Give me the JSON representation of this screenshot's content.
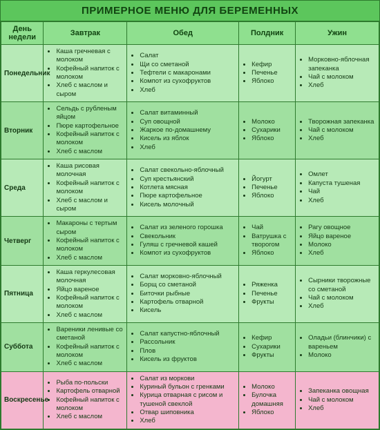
{
  "title": "ПРИМЕРНОЕ МЕНЮ ДЛЯ БЕРЕМЕННЫХ",
  "colors": {
    "title_bg": "#5cc65c",
    "title_text": "#114411",
    "header_bg": "#8fe08f",
    "header_text": "#114411",
    "row_even": "#b7eab7",
    "row_odd": "#a0e0a0",
    "row_pink": "#f4b6ce",
    "border": "#2d7a2d",
    "cell_text": "#153a15"
  },
  "columns": [
    "День недели",
    "Завтрак",
    "Обед",
    "Полдник",
    "Ужин"
  ],
  "rows": [
    {
      "day": "Понедельник",
      "breakfast": [
        "Каша гречневая с молоком",
        "Кофейный напиток с молоком",
        "Хлеб с маслом и сыром"
      ],
      "lunch": [
        "Салат",
        "Щи со сметаной",
        "Тефтели с макаронами",
        "Компот из сухофруктов",
        "Хлеб"
      ],
      "snack": [
        "Кефир",
        "Печенье",
        "Яблоко"
      ],
      "dinner": [
        "Морковно-яблочная запеканка",
        "Чай с молоком",
        "Хлеб"
      ],
      "shade": "even"
    },
    {
      "day": "Вторник",
      "breakfast": [
        "Сельдь с рубленым яйцом",
        "Пюре картофельное",
        "Кофейный напиток с молоком",
        "Хлеб с маслом"
      ],
      "lunch": [
        "Салат витаминный",
        "Суп овощной",
        "Жаркое по-домашнему",
        "Кисель из яблок",
        "Хлеб"
      ],
      "snack": [
        "Молоко",
        "Сухарики",
        "Яблоко"
      ],
      "dinner": [
        "Творожная запеканка",
        "Чай с молоком",
        "Хлеб"
      ],
      "shade": "odd"
    },
    {
      "day": "Среда",
      "breakfast": [
        "Каша рисовая молочная",
        "Кофейный напиток с молоком",
        "Хлеб с маслом и сыром"
      ],
      "lunch": [
        "Салат свекольно-яблочный",
        "Суп крестьянский",
        "Котлета мясная",
        "Пюре картофельное",
        "Кисель молочный"
      ],
      "snack": [
        "Йогурт",
        "Печенье",
        "Яблоко"
      ],
      "dinner": [
        "Омлет",
        "Капуста тушеная",
        "Чай",
        "Хлеб"
      ],
      "shade": "even"
    },
    {
      "day": "Четверг",
      "breakfast": [
        "Макароны с тертым сыром",
        "Кофейный напиток с молоком",
        "Хлеб с маслом"
      ],
      "lunch": [
        "Салат из зеленого горошка",
        "Свекольник",
        "Гуляш с гречневой кашей",
        "Компот из сухофруктов"
      ],
      "snack": [
        "Чай",
        "Ватрушка с творогом",
        "Яблоко"
      ],
      "dinner": [
        "Рагу овощное",
        "Яйцо вареное",
        "Молоко",
        "Хлеб"
      ],
      "shade": "odd"
    },
    {
      "day": "Пятница",
      "breakfast": [
        "Каша геркулесовая молочная",
        "Яйцо вареное",
        "Кофейный напиток с молоком",
        "Хлеб с маслом"
      ],
      "lunch": [
        "Салат морковно-яблочный",
        "Борщ со сметаной",
        "Биточки рыбные",
        "Картофель отварной",
        "Кисель"
      ],
      "snack": [
        "Ряженка",
        "Печенье",
        "Фрукты"
      ],
      "dinner": [
        "Сырники творожные со сметаной",
        "Чай с молоком",
        "Хлеб"
      ],
      "shade": "even"
    },
    {
      "day": "Суббота",
      "breakfast": [
        "Вареники ленивые со сметаной",
        "Кофейный напиток с молоком",
        "Хлеб с маслом"
      ],
      "lunch": [
        "Салат капустно-яблочный",
        "Рассольник",
        "Плов",
        "Кисель из фруктов"
      ],
      "snack": [
        "Кефир",
        "Сухарики",
        "Фрукты"
      ],
      "dinner": [
        "Оладьи (блинчики) с вареньем",
        "Молоко"
      ],
      "shade": "odd"
    },
    {
      "day": "Воскресенье",
      "breakfast": [
        "Рыба по-польски",
        "Картофель отварной",
        "Кофейный напиток с молоком",
        "Хлеб с маслом"
      ],
      "lunch": [
        "Салат из моркови",
        "Куриный бульон с гренками",
        "Курица отварная с рисом и тушеной свеклой",
        "Отвар шиповника",
        "Хлеб"
      ],
      "snack": [
        "Молоко",
        "Булочка домашняя",
        "Яблоко"
      ],
      "dinner": [
        "Запеканка овощная",
        "Чай с молоком",
        "Хлеб"
      ],
      "shade": "pink"
    }
  ]
}
